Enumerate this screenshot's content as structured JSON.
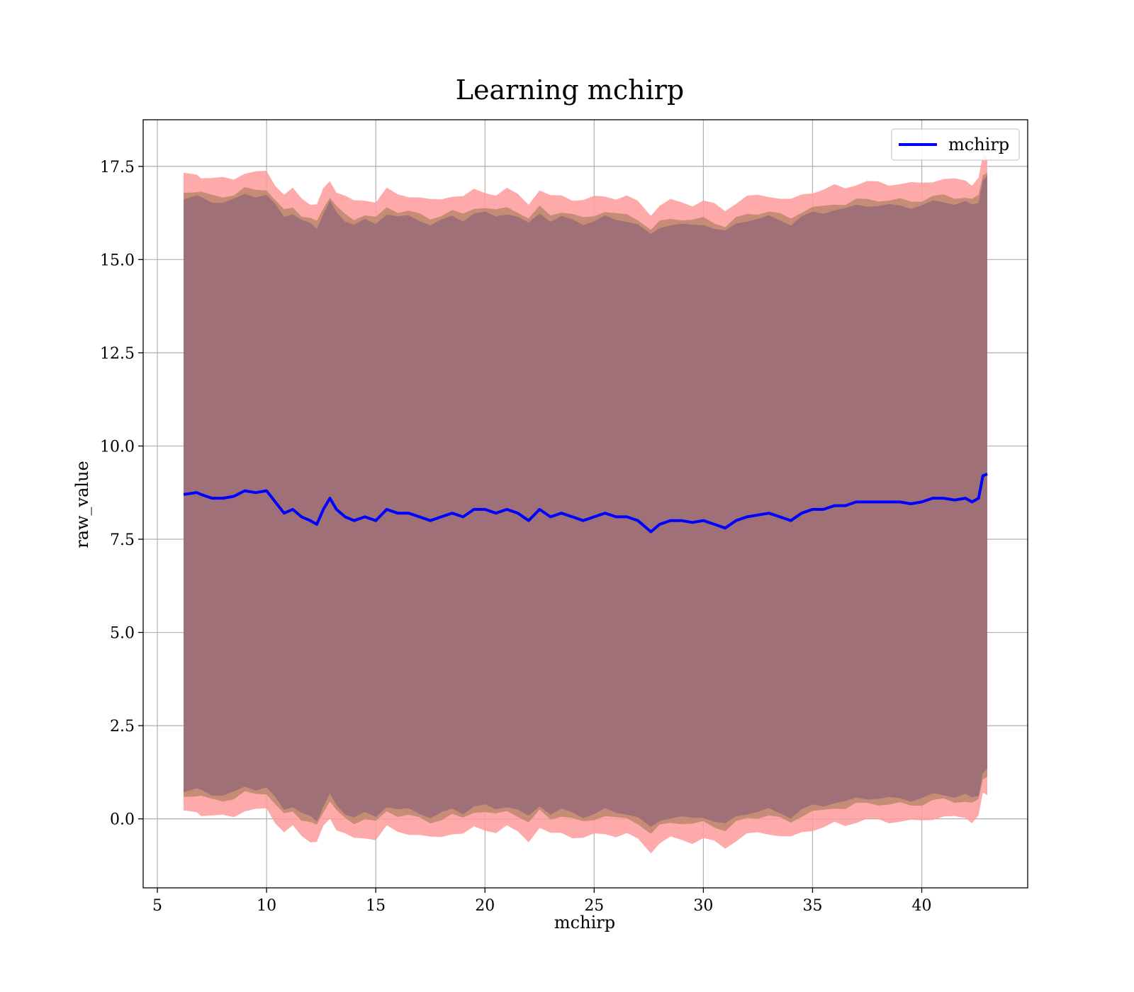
{
  "chart_data": {
    "type": "line",
    "title": "Learning mchirp",
    "xlabel": "mchirp",
    "ylabel": "raw_value",
    "xlim": [
      4.35,
      44.85
    ],
    "ylim": [
      -1.85,
      18.75
    ],
    "xticks": [
      5,
      10,
      15,
      20,
      25,
      30,
      35,
      40
    ],
    "xtick_labels": [
      "5",
      "10",
      "15",
      "20",
      "25",
      "30",
      "35",
      "40"
    ],
    "yticks": [
      0.0,
      2.5,
      5.0,
      7.5,
      10.0,
      12.5,
      15.0,
      17.5
    ],
    "ytick_labels": [
      "0.0",
      "2.5",
      "5.0",
      "7.5",
      "10.0",
      "12.5",
      "15.0",
      "17.5"
    ],
    "grid": true,
    "legend": {
      "position": "top-right",
      "entries": [
        "mchirp"
      ]
    },
    "colors": {
      "line": "#0000ff",
      "band_outer": "#ff9b9b",
      "band_middle": "#c48a73",
      "band_inner": "#a07078",
      "grid": "#b0b0b0"
    },
    "series": [
      {
        "name": "mchirp",
        "x": [
          6.2,
          6.8,
          7.0,
          7.5,
          8.0,
          8.5,
          9.0,
          9.5,
          10.0,
          10.4,
          10.8,
          11.2,
          11.6,
          12.0,
          12.3,
          12.6,
          12.9,
          13.2,
          13.6,
          14.0,
          14.5,
          15.0,
          15.5,
          16.0,
          16.5,
          17.0,
          17.5,
          18.0,
          18.5,
          19.0,
          19.5,
          20.0,
          20.5,
          21.0,
          21.5,
          22.0,
          22.5,
          23.0,
          23.5,
          24.0,
          24.5,
          25.0,
          25.5,
          26.0,
          26.5,
          27.0,
          27.6,
          28.0,
          28.5,
          29.0,
          29.5,
          30.0,
          30.5,
          31.0,
          31.5,
          32.0,
          32.5,
          33.0,
          33.5,
          34.0,
          34.5,
          35.0,
          35.5,
          36.0,
          36.5,
          37.0,
          37.5,
          38.0,
          38.5,
          39.0,
          39.5,
          40.0,
          40.5,
          41.0,
          41.5,
          42.0,
          42.3,
          42.6,
          42.8,
          43.0
        ],
        "y": [
          8.7,
          8.75,
          8.7,
          8.6,
          8.6,
          8.65,
          8.8,
          8.75,
          8.8,
          8.5,
          8.2,
          8.3,
          8.1,
          8.0,
          7.9,
          8.3,
          8.6,
          8.3,
          8.1,
          8.0,
          8.1,
          8.0,
          8.3,
          8.2,
          8.2,
          8.1,
          8.0,
          8.1,
          8.2,
          8.1,
          8.3,
          8.3,
          8.2,
          8.3,
          8.2,
          8.0,
          8.3,
          8.1,
          8.2,
          8.1,
          8.0,
          8.1,
          8.2,
          8.1,
          8.1,
          8.0,
          7.7,
          7.9,
          8.0,
          8.0,
          7.95,
          8.0,
          7.9,
          7.8,
          8.0,
          8.1,
          8.15,
          8.2,
          8.1,
          8.0,
          8.2,
          8.3,
          8.3,
          8.4,
          8.4,
          8.5,
          8.5,
          8.5,
          8.5,
          8.5,
          8.45,
          8.5,
          8.6,
          8.6,
          8.55,
          8.6,
          8.5,
          8.6,
          9.2,
          9.25
        ]
      }
    ],
    "bands": {
      "outer_offset": 8.55,
      "middle_offset": 8.1,
      "inner_offset": 7.95
    }
  }
}
